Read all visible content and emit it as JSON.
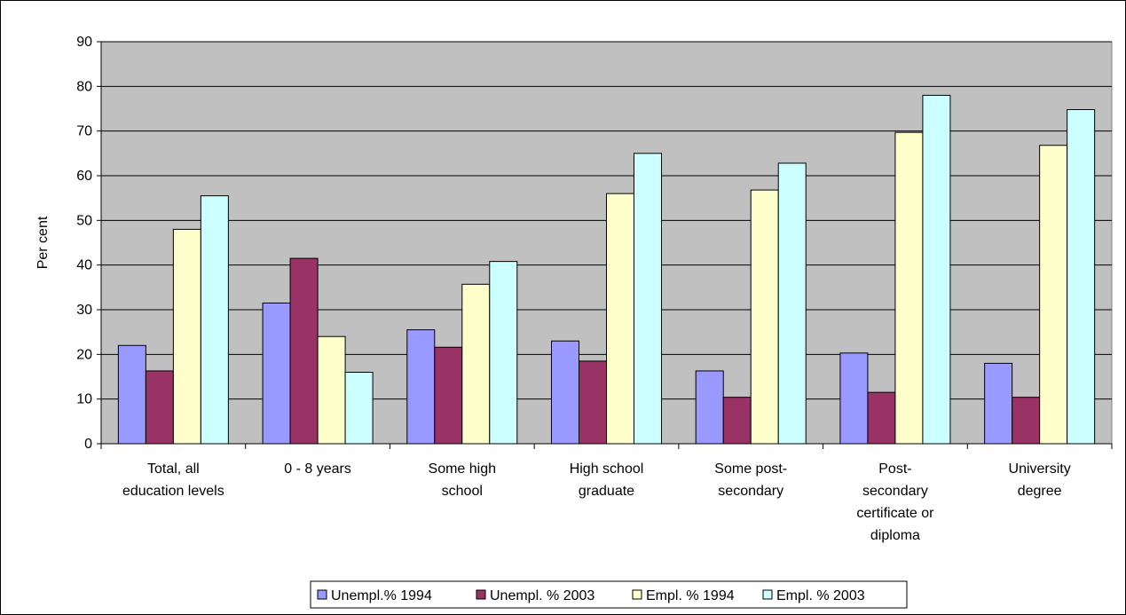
{
  "chart_data": {
    "type": "bar",
    "title": "",
    "xlabel": "",
    "ylabel": "Per cent",
    "ylim": [
      0,
      90
    ],
    "ytick_step": 10,
    "grid": true,
    "legend_position": "bottom",
    "categories": [
      [
        "Total, all",
        "education levels"
      ],
      [
        "0 - 8  years"
      ],
      [
        "Some high",
        "school"
      ],
      [
        "High school",
        "graduate"
      ],
      [
        "Some post-",
        "secondary"
      ],
      [
        "Post-",
        "secondary",
        "certificate or",
        "diploma"
      ],
      [
        "University",
        "degree"
      ]
    ],
    "series": [
      {
        "name": "Unempl.% 1994",
        "color": "#9999FF",
        "values": [
          22,
          31.5,
          25.5,
          23,
          16.3,
          20.3,
          18
        ]
      },
      {
        "name": "Unempl. % 2003",
        "color": "#993366",
        "values": [
          16.3,
          41.5,
          21.6,
          18.5,
          10.4,
          11.5,
          10.4
        ]
      },
      {
        "name": "Empl. % 1994",
        "color": "#FFFFCC",
        "values": [
          48,
          24,
          35.7,
          56,
          56.8,
          69.7,
          66.8
        ]
      },
      {
        "name": "Empl. % 2003",
        "color": "#CCFFFF",
        "values": [
          55.5,
          16,
          40.8,
          65,
          62.8,
          78,
          74.8
        ]
      }
    ],
    "plot_background": "#C0C0C0"
  }
}
